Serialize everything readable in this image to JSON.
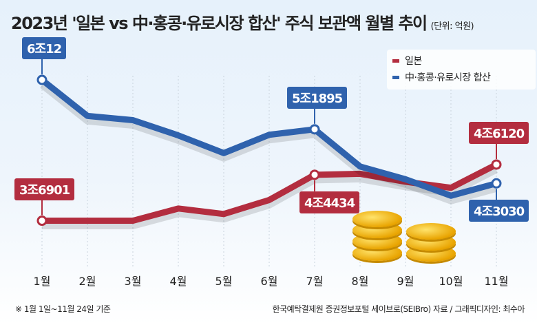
{
  "title": "2023년 '일본 vs 中·홍콩·유로시장 합산' 주식 보관액 월별 추이",
  "unit": "(단위: 억원)",
  "footer": {
    "note": "※ 1월 1일~11월 24일 기준",
    "source": "한국예탁결제원 증권정보포털 세이브로(SEIBro) 자료 / 그래픽디자인: 최수아"
  },
  "chart_data": {
    "type": "line",
    "categories": [
      "1월",
      "2월",
      "3월",
      "4월",
      "5월",
      "6월",
      "7월",
      "8월",
      "9월",
      "10월",
      "11월"
    ],
    "legend_position": "top-right",
    "grid": "vertical dashed",
    "series": [
      {
        "name": "일본",
        "color": "#b32d3f",
        "values": [
          36901,
          36900,
          36900,
          38900,
          38000,
          40300,
          44434,
          44600,
          43300,
          42300,
          46120
        ]
      },
      {
        "name": "中·홍콩·유로시장 합산",
        "color": "#2f62ad",
        "values": [
          60012,
          54100,
          53400,
          50900,
          48000,
          51000,
          51895,
          45800,
          43700,
          41000,
          43030
        ]
      }
    ],
    "data_labels": [
      {
        "series": 0,
        "index": 0,
        "text": "3조6901"
      },
      {
        "series": 0,
        "index": 6,
        "text": "4조4434"
      },
      {
        "series": 0,
        "index": 10,
        "text": "4조6120"
      },
      {
        "series": 1,
        "index": 0,
        "text": "6조12"
      },
      {
        "series": 1,
        "index": 6,
        "text": "5조1895"
      },
      {
        "series": 1,
        "index": 10,
        "text": "4조3030"
      }
    ]
  }
}
